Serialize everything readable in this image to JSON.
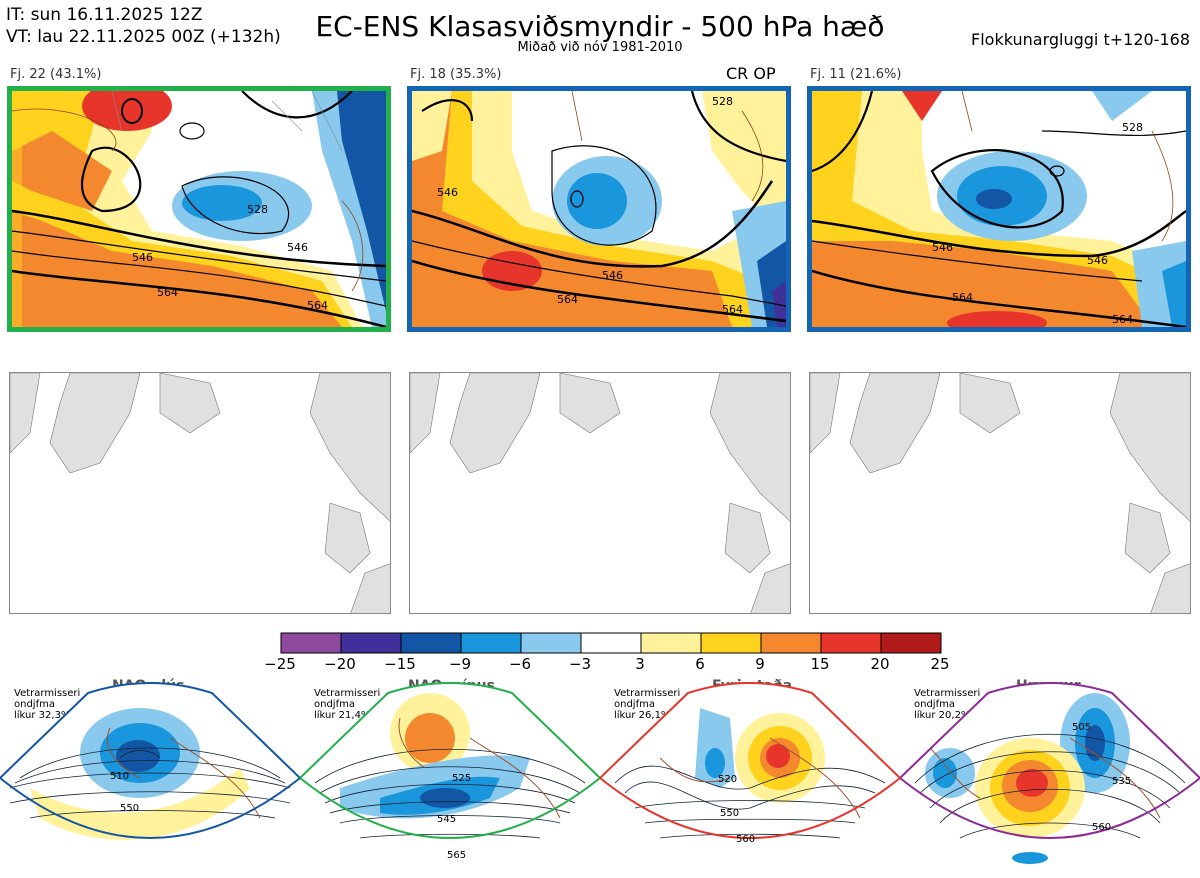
{
  "header": {
    "it_line": "IT: sun 16.11.2025 12Z",
    "vt_line": "VT: lau 22.11.2025 00Z  (+132h)",
    "title": "EC-ENS Klasasviðsmyndir - 500 hPa hæð",
    "subtitle": "Miðað við nóv 1981-2010",
    "window": "Flokkunargluggi t+120-168"
  },
  "clusters": [
    {
      "label": "Fj. 22 (43.1%)",
      "border_color": "#22b04b",
      "contours": [
        "528",
        "528",
        "528",
        "546",
        "546",
        "564",
        "564"
      ]
    },
    {
      "label": "Fj. 18 (35.3%)",
      "border_color": "#1565b5",
      "contours": [
        "546",
        "546",
        "546",
        "528",
        "564",
        "564"
      ],
      "tag": "CR OP"
    },
    {
      "label": "Fj. 11 (21.6%)",
      "border_color": "#1565b5",
      "contours": [
        "528",
        "528",
        "546",
        "546",
        "564",
        "564"
      ]
    }
  ],
  "colorbar": {
    "ticks": [
      "−25",
      "−20",
      "−15",
      "−9",
      "−6",
      "−3",
      "3",
      "6",
      "9",
      "15",
      "20",
      "25"
    ],
    "colors": [
      "#8e4a9c",
      "#40309a",
      "#1456a6",
      "#1a96dc",
      "#89c9ee",
      "#ffffff",
      "#fff29a",
      "#ffd21e",
      "#f3882e",
      "#e8352c",
      "#b01a1a"
    ]
  },
  "regimes": [
    {
      "name": "NAO plús",
      "stats": [
        "Vetrarmisseri",
        "ondjfma",
        "líkur 32,3%"
      ],
      "color": "#1456a6",
      "dot_color": "#1456a6",
      "contours": [
        "510",
        "550"
      ]
    },
    {
      "name": "NAO mínus",
      "stats": [
        "Vetrarmisseri",
        "ondjfma",
        "líkur 21,4%"
      ],
      "color": "#22b04b",
      "dot_color": "#22b04b",
      "contours": [
        "525",
        "545",
        "565"
      ]
    },
    {
      "name": "Fyrirstaða",
      "stats": [
        "Vetrarmisseri",
        "ondjfma",
        "líkur 26,1%"
      ],
      "color": "#e8352c",
      "dot_color": "#e8352c",
      "contours": [
        "520",
        "550",
        "560"
      ]
    },
    {
      "name": "Hryggur",
      "stats": [
        "Vetrarmisseri",
        "ondjfma",
        "líkur 20,2%"
      ],
      "color": "#8e2a96",
      "dot_color": "#e870e8",
      "contours": [
        "505",
        "535",
        "560"
      ]
    }
  ]
}
